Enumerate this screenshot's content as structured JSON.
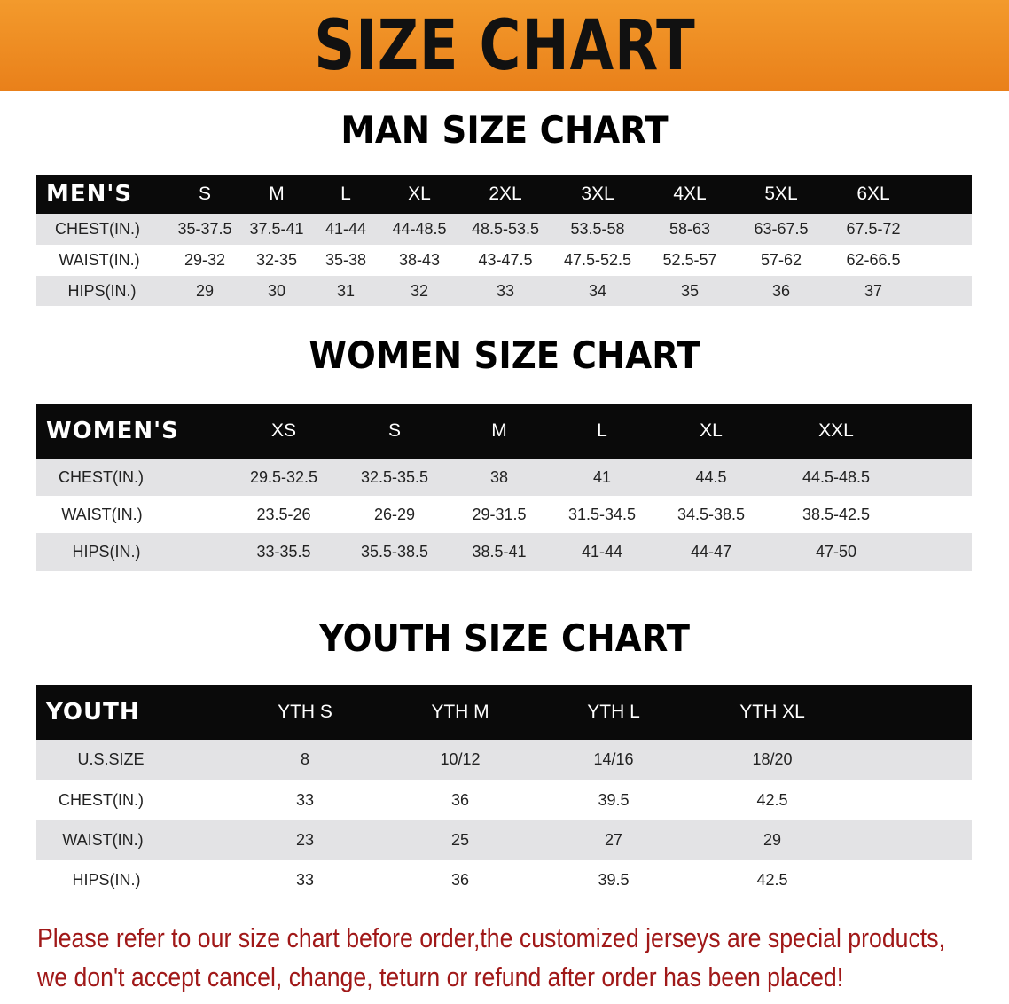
{
  "banner_title": "SIZE CHART",
  "men": {
    "title": "MAN SIZE CHART",
    "header_label": "MEN'S",
    "sizes": [
      "S",
      "M",
      "L",
      "XL",
      "2XL",
      "3XL",
      "4XL",
      "5XL",
      "6XL"
    ],
    "rows": [
      {
        "label": "CHEST(IN.)",
        "values": [
          "35-37.5",
          "37.5-41",
          "41-44",
          "44-48.5",
          "48.5-53.5",
          "53.5-58",
          "58-63",
          "63-67.5",
          "67.5-72"
        ]
      },
      {
        "label": "WAIST(IN.)",
        "values": [
          "29-32",
          "32-35",
          "35-38",
          "38-43",
          "43-47.5",
          "47.5-52.5",
          "52.5-57",
          "57-62",
          "62-66.5"
        ]
      },
      {
        "label": "HIPS(IN.)",
        "values": [
          "29",
          "30",
          "31",
          "32",
          "33",
          "34",
          "35",
          "36",
          "37"
        ]
      }
    ]
  },
  "women": {
    "title": "WOMEN SIZE CHART",
    "header_label": "WOMEN'S",
    "sizes": [
      "XS",
      "S",
      "M",
      "L",
      "XL",
      "XXL"
    ],
    "rows": [
      {
        "label": "CHEST(IN.)",
        "values": [
          "29.5-32.5",
          "32.5-35.5",
          "38",
          "41",
          "44.5",
          "44.5-48.5"
        ]
      },
      {
        "label": "WAIST(IN.)",
        "values": [
          "23.5-26",
          "26-29",
          "29-31.5",
          "31.5-34.5",
          "34.5-38.5",
          "38.5-42.5"
        ]
      },
      {
        "label": "HIPS(IN.)",
        "values": [
          "33-35.5",
          "35.5-38.5",
          "38.5-41",
          "41-44",
          "44-47",
          "47-50"
        ]
      }
    ]
  },
  "youth": {
    "title": "YOUTH SIZE CHART",
    "header_label": "YOUTH",
    "sizes": [
      "YTH S",
      "YTH M",
      "YTH L",
      "YTH XL"
    ],
    "rows": [
      {
        "label": "U.S.SIZE",
        "values": [
          "8",
          "10/12",
          "14/16",
          "18/20"
        ]
      },
      {
        "label": "CHEST(IN.)",
        "values": [
          "33",
          "36",
          "39.5",
          "42.5"
        ]
      },
      {
        "label": "WAIST(IN.)",
        "values": [
          "23",
          "25",
          "27",
          "29"
        ]
      },
      {
        "label": "HIPS(IN.)",
        "values": [
          "33",
          "36",
          "39.5",
          "42.5"
        ]
      }
    ]
  },
  "note": {
    "line1": "Please refer to our size chart before order,the customized jerseys are special products,",
    "line2": "we don't accept cancel, change, teturn or refund after order has been placed!"
  },
  "colors": {
    "banner": "#ee8a22",
    "header_bg": "#0a0a0a",
    "row_gray": "#e3e3e5",
    "note": "#a01818"
  }
}
